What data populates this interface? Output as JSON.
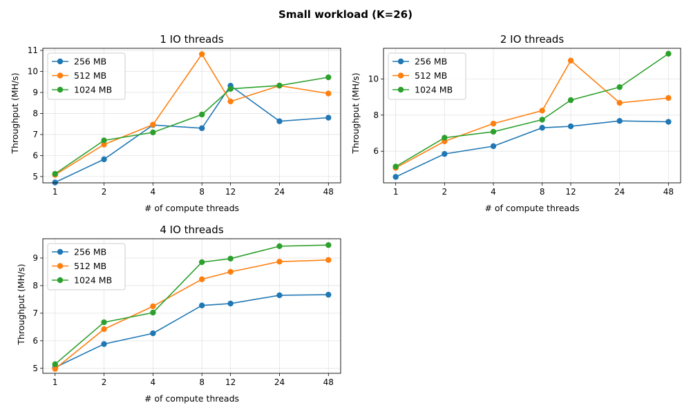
{
  "suptitle": "Small workload (K=26)",
  "colors": [
    "#1f77b4",
    "#ff7f0e",
    "#2ca02c"
  ],
  "chart_data": [
    {
      "type": "line",
      "title": "1 IO threads",
      "xlabel": "# of compute threads",
      "ylabel": "Throughput (MH/s)",
      "x": [
        "1",
        "2",
        "4",
        "8",
        "12",
        "24",
        "48"
      ],
      "ylim": [
        4.7,
        11.1
      ],
      "yticks": [
        5,
        6,
        7,
        8,
        9,
        10,
        11
      ],
      "grid": true,
      "legend": "top-left",
      "series": [
        {
          "name": "256 MB",
          "values": [
            4.72,
            5.82,
            7.45,
            7.3,
            9.32,
            7.63,
            7.8
          ]
        },
        {
          "name": "512 MB",
          "values": [
            5.08,
            6.52,
            7.47,
            10.82,
            8.57,
            9.32,
            8.95
          ]
        },
        {
          "name": "1024 MB",
          "values": [
            5.13,
            6.72,
            7.1,
            7.95,
            9.17,
            9.33,
            9.72
          ]
        }
      ]
    },
    {
      "type": "line",
      "title": "2 IO threads",
      "xlabel": "# of compute threads",
      "ylabel": "Throughput (MH/s)",
      "x": [
        "1",
        "2",
        "4",
        "8",
        "12",
        "24",
        "48"
      ],
      "ylim": [
        4.25,
        11.7
      ],
      "yticks": [
        6,
        8,
        10
      ],
      "grid": true,
      "legend": "top-left",
      "series": [
        {
          "name": "256 MB",
          "values": [
            4.58,
            5.85,
            6.28,
            7.3,
            7.38,
            7.68,
            7.63
          ]
        },
        {
          "name": "512 MB",
          "values": [
            5.08,
            6.55,
            7.53,
            8.25,
            11.02,
            8.68,
            8.95
          ]
        },
        {
          "name": "1024 MB",
          "values": [
            5.15,
            6.75,
            7.08,
            7.75,
            8.83,
            9.55,
            11.4
          ]
        }
      ]
    },
    {
      "type": "line",
      "title": "4 IO threads",
      "xlabel": "# of compute threads",
      "ylabel": "Throughput (MH/s)",
      "x": [
        "1",
        "2",
        "4",
        "8",
        "12",
        "24",
        "48"
      ],
      "ylim": [
        4.82,
        9.7
      ],
      "yticks": [
        5,
        6,
        7,
        8,
        9
      ],
      "grid": true,
      "legend": "top-left",
      "series": [
        {
          "name": "256 MB",
          "values": [
            5.03,
            5.88,
            6.27,
            7.28,
            7.35,
            7.65,
            7.67
          ]
        },
        {
          "name": "512 MB",
          "values": [
            4.98,
            6.42,
            7.25,
            8.23,
            8.5,
            8.87,
            8.93
          ]
        },
        {
          "name": "1024 MB",
          "values": [
            5.15,
            6.67,
            7.02,
            8.85,
            8.98,
            9.43,
            9.47
          ]
        }
      ]
    }
  ]
}
